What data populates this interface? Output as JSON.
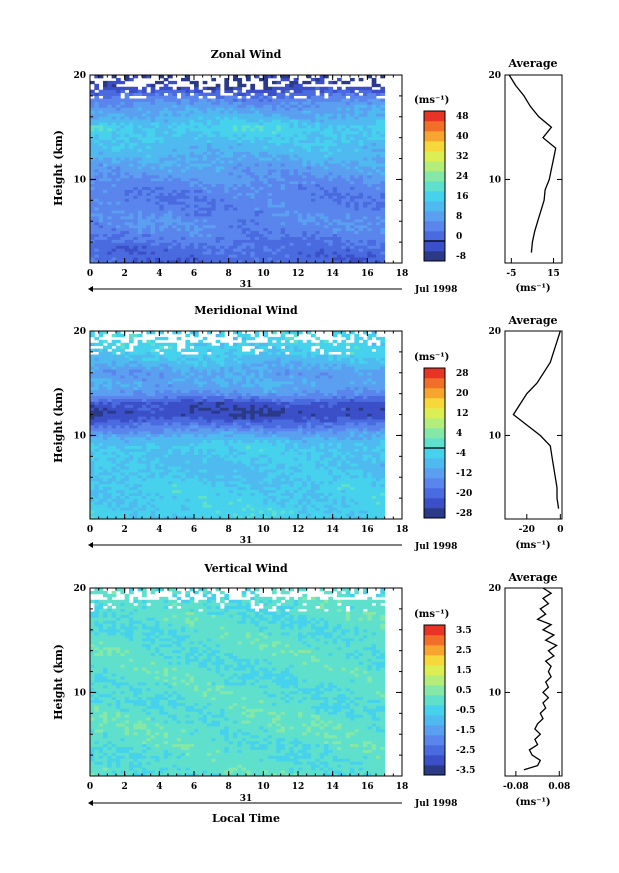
{
  "chart_data": [
    {
      "type": "heatmap",
      "title": "Zonal Wind",
      "ylabel": "Height (km)",
      "xlim": [
        0,
        18
      ],
      "ylim": [
        2,
        20
      ],
      "x_ticks": [
        "0",
        "2",
        "4",
        "6",
        "8",
        "10",
        "12",
        "14",
        "16",
        "18"
      ],
      "y_ticks": [
        "10",
        "20"
      ],
      "date_day": "31",
      "date_label": "Jul 1998",
      "colorbar": {
        "unit": "(ms⁻¹)",
        "levels": [
          -8,
          -4,
          0,
          4,
          8,
          12,
          16,
          20,
          24,
          28,
          32,
          36,
          40,
          44,
          48
        ],
        "tick_labels": [
          "48",
          "40",
          "32",
          "24",
          "16",
          "8",
          "0",
          "-8"
        ],
        "tick_values": [
          48,
          40,
          32,
          24,
          16,
          8,
          0,
          -8
        ],
        "colors": [
          "#2b3a86",
          "#3b4fc8",
          "#4a6be0",
          "#5a85ec",
          "#5a9ff0",
          "#4fbaf0",
          "#46d2ec",
          "#5fe0cc",
          "#86e8a6",
          "#b4ee7a",
          "#dcef52",
          "#f6d83a",
          "#f7a52e",
          "#f26f2a",
          "#e83424"
        ],
        "contour_value": 0
      },
      "data": {
        "heights": [
          3,
          4,
          5,
          6,
          7,
          8,
          9,
          10,
          11,
          12,
          13,
          14,
          15,
          16,
          17,
          18,
          19
        ],
        "values": [
          2,
          4,
          6,
          7,
          6,
          5,
          6,
          8,
          10,
          12,
          14,
          16,
          18,
          13,
          10,
          4,
          -5
        ]
      },
      "average_profile": {
        "title": "Average",
        "xlabel": "(ms⁻¹)",
        "x_ticks": [
          "-5",
          "15"
        ],
        "x_tick_values": [
          -5,
          15
        ],
        "xlim": [
          -8,
          19
        ],
        "points": [
          [
            4.5,
            3
          ],
          [
            5,
            4
          ],
          [
            6,
            5
          ],
          [
            7.5,
            6
          ],
          [
            9,
            7
          ],
          [
            10.5,
            8
          ],
          [
            11,
            9
          ],
          [
            13,
            10
          ],
          [
            14,
            11
          ],
          [
            15,
            12
          ],
          [
            16,
            13
          ],
          [
            10,
            14
          ],
          [
            14,
            15
          ],
          [
            8,
            16
          ],
          [
            4,
            17
          ],
          [
            1,
            18
          ],
          [
            -3,
            19
          ],
          [
            -6,
            20
          ]
        ]
      }
    },
    {
      "type": "heatmap",
      "title": "Meridional Wind",
      "ylabel": "Height (km)",
      "xlim": [
        0,
        18
      ],
      "ylim": [
        2,
        20
      ],
      "x_ticks": [
        "0",
        "2",
        "4",
        "6",
        "8",
        "10",
        "12",
        "14",
        "16",
        "18"
      ],
      "y_ticks": [
        "10",
        "20"
      ],
      "date_day": "31",
      "date_label": "Jul 1998",
      "colorbar": {
        "unit": "(ms⁻¹)",
        "levels": [
          -28,
          -24,
          -20,
          -16,
          -12,
          -8,
          -4,
          0,
          4,
          8,
          12,
          16,
          20,
          24,
          28
        ],
        "tick_labels": [
          "28",
          "20",
          "12",
          "4",
          "-4",
          "-12",
          "-20",
          "-28"
        ],
        "tick_values": [
          28,
          20,
          12,
          4,
          -4,
          -12,
          -20,
          -28
        ],
        "colors": [
          "#2b3a86",
          "#3b4fc8",
          "#4a6be0",
          "#5a85ec",
          "#5a9ff0",
          "#4fbaf0",
          "#46d2ec",
          "#5fe0cc",
          "#86e8a6",
          "#b4ee7a",
          "#dcef52",
          "#f6d83a",
          "#f7a52e",
          "#f26f2a",
          "#e83424"
        ],
        "contour_value": 0
      },
      "data": {
        "heights": [
          3,
          4,
          5,
          6,
          7,
          8,
          9,
          10,
          11,
          12,
          13,
          14,
          15,
          16,
          17,
          18,
          19
        ],
        "values": [
          -2,
          -3,
          -3,
          -4,
          -5,
          -4,
          -3,
          -8,
          -16,
          -24,
          -22,
          -12,
          -8,
          -10,
          -6,
          -3,
          -2
        ]
      },
      "average_profile": {
        "title": "Average",
        "xlabel": "(ms⁻¹)",
        "x_ticks": [
          "-20",
          "0"
        ],
        "x_tick_values": [
          -20,
          0
        ],
        "xlim": [
          -33,
          1
        ],
        "points": [
          [
            -1,
            3
          ],
          [
            -2,
            4
          ],
          [
            -2,
            5
          ],
          [
            -3,
            6
          ],
          [
            -4,
            7
          ],
          [
            -5,
            8
          ],
          [
            -6,
            9
          ],
          [
            -12,
            10
          ],
          [
            -20,
            11
          ],
          [
            -28,
            12
          ],
          [
            -24,
            13
          ],
          [
            -20,
            14
          ],
          [
            -14,
            15
          ],
          [
            -10,
            16
          ],
          [
            -6,
            17
          ],
          [
            -4,
            18
          ],
          [
            -2,
            19
          ],
          [
            0,
            20
          ]
        ]
      }
    },
    {
      "type": "heatmap",
      "title": "Vertical Wind",
      "ylabel": "Height (km)",
      "xlabel": "Local Time",
      "xlim": [
        0,
        18
      ],
      "ylim": [
        2,
        20
      ],
      "x_ticks": [
        "0",
        "2",
        "4",
        "6",
        "8",
        "10",
        "12",
        "14",
        "16",
        "18"
      ],
      "y_ticks": [
        "10",
        "20"
      ],
      "date_day": "31",
      "date_label": "Jul 1998",
      "colorbar": {
        "unit": "(ms⁻¹)",
        "levels": [
          -3.5,
          -3.0,
          -2.5,
          -2.0,
          -1.5,
          -1.0,
          -0.5,
          0,
          0.5,
          1.0,
          1.5,
          2.0,
          2.5,
          3.0,
          3.5
        ],
        "tick_labels": [
          "3.5",
          "2.5",
          "1.5",
          "0.5",
          "-0.5",
          "-1.5",
          "-2.5",
          "-3.5"
        ],
        "tick_values": [
          3.5,
          2.5,
          1.5,
          0.5,
          -0.5,
          -1.5,
          -2.5,
          -3.5
        ],
        "colors": [
          "#2b3a86",
          "#3b4fc8",
          "#4a6be0",
          "#5a85ec",
          "#5a9ff0",
          "#4fbaf0",
          "#46d2ec",
          "#5fe0cc",
          "#86e8a6",
          "#b4ee7a",
          "#dcef52",
          "#f6d83a",
          "#f7a52e",
          "#f26f2a",
          "#e83424"
        ]
      },
      "data": {
        "heights": [
          3,
          4,
          5,
          6,
          7,
          8,
          9,
          10,
          11,
          12,
          13,
          14,
          15,
          16,
          17,
          18,
          19
        ],
        "values": [
          0.2,
          0.1,
          0.2,
          0.2,
          0.3,
          0.2,
          0.1,
          0.2,
          0.1,
          0.2,
          0.1,
          0.2,
          0.2,
          0.1,
          0.2,
          0.1,
          0.1
        ]
      },
      "average_profile": {
        "title": "Average",
        "xlabel": "(ms⁻¹)",
        "x_ticks": [
          "-0.08",
          "0.08"
        ],
        "x_tick_values": [
          -0.08,
          0.08
        ],
        "xlim": [
          -0.12,
          0.09
        ],
        "points": [
          [
            -0.05,
            2.6
          ],
          [
            0.0,
            3
          ],
          [
            0.01,
            3.5
          ],
          [
            -0.02,
            4
          ],
          [
            -0.03,
            4.5
          ],
          [
            0.0,
            5
          ],
          [
            -0.01,
            5.5
          ],
          [
            0.01,
            6
          ],
          [
            -0.01,
            6.5
          ],
          [
            0.0,
            7
          ],
          [
            0.02,
            7.5
          ],
          [
            0.01,
            8
          ],
          [
            0.03,
            8.5
          ],
          [
            0.02,
            9
          ],
          [
            0.04,
            9.5
          ],
          [
            0.02,
            10
          ],
          [
            0.04,
            10.5
          ],
          [
            0.03,
            11
          ],
          [
            0.05,
            11.5
          ],
          [
            0.04,
            12
          ],
          [
            0.05,
            12.5
          ],
          [
            0.03,
            13
          ],
          [
            0.06,
            13.5
          ],
          [
            0.04,
            14
          ],
          [
            0.07,
            14.5
          ],
          [
            0.03,
            15
          ],
          [
            0.06,
            15.5
          ],
          [
            0.02,
            16
          ],
          [
            0.05,
            16.5
          ],
          [
            0.0,
            17
          ],
          [
            0.03,
            17.5
          ],
          [
            0.01,
            18
          ],
          [
            0.04,
            18.5
          ],
          [
            0.02,
            19
          ],
          [
            0.05,
            19.5
          ],
          [
            0.02,
            20
          ]
        ]
      }
    }
  ]
}
